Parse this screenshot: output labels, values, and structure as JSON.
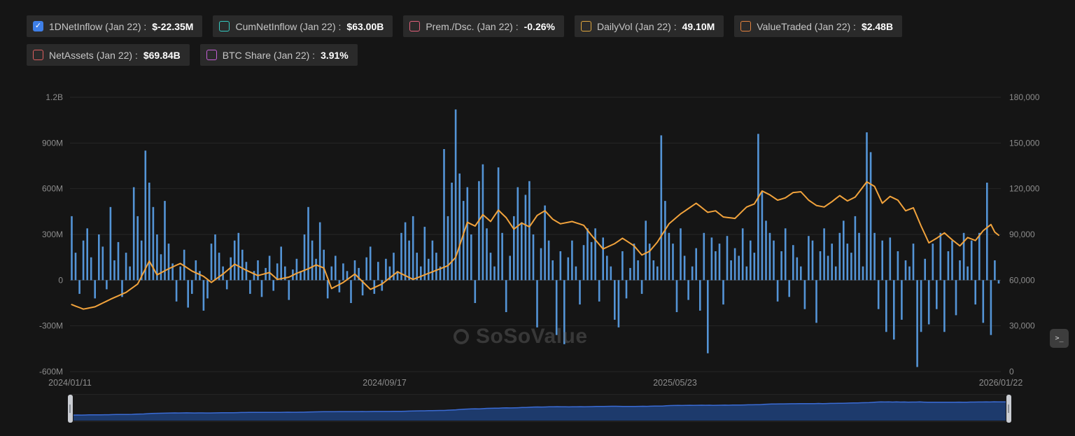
{
  "legend": {
    "check_glyph": "✓",
    "row1": [
      {
        "label": "1DNetInflow",
        "date": "(Jan 22) :",
        "value": "$-22.35M",
        "color": "#3e7fe8",
        "checked": true
      },
      {
        "label": "CumNetInflow",
        "date": "(Jan 22) :",
        "value": "$63.00B",
        "color": "#35c9c0",
        "checked": false
      },
      {
        "label": "Prem./Dsc.",
        "date": "(Jan 22) :",
        "value": "-0.26%",
        "color": "#e0607a",
        "checked": false
      },
      {
        "label": "DailyVol",
        "date": "(Jan 22) :",
        "value": "49.10M",
        "color": "#dfa63e",
        "checked": false
      },
      {
        "label": "ValueTraded",
        "date": "(Jan 22) :",
        "value": "$2.48B",
        "color": "#e2823e",
        "checked": false
      }
    ],
    "row2": [
      {
        "label": "NetAssets",
        "date": "(Jan 22) :",
        "value": "$69.84B",
        "color": "#dd5f5f",
        "checked": false
      },
      {
        "label": "BTC Share",
        "date": "(Jan 22) :",
        "value": "3.91%",
        "color": "#c45fd6",
        "checked": false
      }
    ]
  },
  "watermark": {
    "text": "SoSoValue"
  },
  "side_button": {
    "icon": ">_"
  },
  "chart_data": {
    "type": "bar",
    "title": "",
    "left_axis": {
      "ticks": [
        "1.2B",
        "900M",
        "600M",
        "300M",
        "0",
        "-300M",
        "-600M"
      ],
      "max": 1200,
      "min": -600,
      "unit": "M USD"
    },
    "right_axis": {
      "ticks": [
        "180,000",
        "150,000",
        "120,000",
        "90,000",
        "60,000",
        "30,000",
        "0"
      ],
      "max": 180000,
      "min": 0
    },
    "x_labels": [
      {
        "label": "2024/01/11",
        "pos": 0.0
      },
      {
        "label": "2024/09/17",
        "pos": 0.338
      },
      {
        "label": "2025/05/23",
        "pos": 0.65
      },
      {
        "label": "2026/01/22",
        "pos": 1.0
      }
    ],
    "bars": {
      "name": "1DNetInflow",
      "color": "#5494d6",
      "values": [
        420,
        180,
        -90,
        260,
        340,
        150,
        -120,
        300,
        220,
        -60,
        480,
        130,
        250,
        -110,
        180,
        90,
        610,
        420,
        260,
        850,
        640,
        480,
        300,
        170,
        520,
        240,
        110,
        -140,
        90,
        200,
        -180,
        -90,
        130,
        60,
        -200,
        -120,
        240,
        300,
        180,
        90,
        -60,
        150,
        260,
        310,
        200,
        120,
        -90,
        60,
        130,
        -110,
        80,
        160,
        -70,
        110,
        220,
        90,
        -130,
        70,
        140,
        60,
        300,
        480,
        260,
        140,
        380,
        200,
        -120,
        90,
        160,
        -80,
        110,
        60,
        -150,
        130,
        80,
        -100,
        150,
        220,
        -90,
        120,
        -70,
        140,
        90,
        180,
        60,
        310,
        380,
        260,
        420,
        180,
        90,
        350,
        140,
        260,
        180,
        90,
        860,
        420,
        640,
        1120,
        700,
        520,
        610,
        300,
        -150,
        650,
        760,
        340,
        180,
        90,
        740,
        310,
        -210,
        160,
        420,
        610,
        380,
        560,
        650,
        300,
        -310,
        210,
        490,
        260,
        130,
        -360,
        190,
        -420,
        150,
        260,
        90,
        -160,
        230,
        340,
        250,
        340,
        -140,
        280,
        160,
        90,
        -260,
        -310,
        190,
        -120,
        80,
        240,
        130,
        -90,
        390,
        240,
        130,
        90,
        950,
        520,
        310,
        240,
        -210,
        340,
        160,
        -130,
        90,
        210,
        -200,
        310,
        -480,
        280,
        190,
        240,
        -160,
        290,
        130,
        210,
        160,
        340,
        90,
        260,
        180,
        960,
        580,
        390,
        310,
        260,
        -140,
        190,
        340,
        -110,
        230,
        150,
        90,
        -190,
        290,
        260,
        -280,
        190,
        340,
        160,
        240,
        90,
        310,
        390,
        240,
        180,
        420,
        310,
        90,
        970,
        840,
        310,
        -190,
        260,
        -340,
        280,
        -390,
        190,
        -260,
        130,
        90,
        240,
        -570,
        -340,
        140,
        -290,
        240,
        -190,
        310,
        -340,
        190,
        260,
        -230,
        130,
        310,
        90,
        260,
        -160,
        310,
        -280,
        640,
        -360,
        130,
        -22
      ]
    },
    "line": {
      "color": "#f2a33c",
      "axis": "right",
      "anchors": [
        [
          0,
          44000
        ],
        [
          3,
          41000
        ],
        [
          6,
          42500
        ],
        [
          10,
          47500
        ],
        [
          14,
          52000
        ],
        [
          17,
          57500
        ],
        [
          20,
          72500
        ],
        [
          22,
          63500
        ],
        [
          25,
          67500
        ],
        [
          28,
          71000
        ],
        [
          31,
          66000
        ],
        [
          34,
          62500
        ],
        [
          36,
          58500
        ],
        [
          39,
          64000
        ],
        [
          42,
          70500
        ],
        [
          45,
          66500
        ],
        [
          48,
          63000
        ],
        [
          51,
          65000
        ],
        [
          53,
          60500
        ],
        [
          56,
          62000
        ],
        [
          58,
          64500
        ],
        [
          61,
          67500
        ],
        [
          63,
          70000
        ],
        [
          65,
          68000
        ],
        [
          67,
          54500
        ],
        [
          70,
          58500
        ],
        [
          73,
          64000
        ],
        [
          75,
          59000
        ],
        [
          77,
          54000
        ],
        [
          80,
          57500
        ],
        [
          84,
          65500
        ],
        [
          86,
          63000
        ],
        [
          88,
          60500
        ],
        [
          91,
          63500
        ],
        [
          94,
          66500
        ],
        [
          97,
          69500
        ],
        [
          99,
          75000
        ],
        [
          102,
          98000
        ],
        [
          104,
          95500
        ],
        [
          106,
          103000
        ],
        [
          108,
          98500
        ],
        [
          110,
          106000
        ],
        [
          112,
          101000
        ],
        [
          114,
          93500
        ],
        [
          116,
          97500
        ],
        [
          118,
          95000
        ],
        [
          120,
          102500
        ],
        [
          122,
          105500
        ],
        [
          124,
          100000
        ],
        [
          126,
          97000
        ],
        [
          129,
          98500
        ],
        [
          132,
          96000
        ],
        [
          134,
          89500
        ],
        [
          137,
          80500
        ],
        [
          140,
          84000
        ],
        [
          142,
          87500
        ],
        [
          145,
          82500
        ],
        [
          147,
          76500
        ],
        [
          149,
          79000
        ],
        [
          151,
          85000
        ],
        [
          154,
          97000
        ],
        [
          157,
          103500
        ],
        [
          159,
          107000
        ],
        [
          161,
          110500
        ],
        [
          164,
          104500
        ],
        [
          166,
          105500
        ],
        [
          168,
          101500
        ],
        [
          171,
          100500
        ],
        [
          174,
          108000
        ],
        [
          176,
          110000
        ],
        [
          178,
          118500
        ],
        [
          180,
          116000
        ],
        [
          182,
          112500
        ],
        [
          184,
          114000
        ],
        [
          186,
          117500
        ],
        [
          188,
          118000
        ],
        [
          190,
          112500
        ],
        [
          192,
          109000
        ],
        [
          194,
          108000
        ],
        [
          196,
          111500
        ],
        [
          198,
          115500
        ],
        [
          200,
          112000
        ],
        [
          202,
          114500
        ],
        [
          205,
          124500
        ],
        [
          207,
          121500
        ],
        [
          209,
          110500
        ],
        [
          211,
          115000
        ],
        [
          213,
          112500
        ],
        [
          215,
          105500
        ],
        [
          217,
          107500
        ],
        [
          219,
          95500
        ],
        [
          221,
          84500
        ],
        [
          223,
          87500
        ],
        [
          225,
          91000
        ],
        [
          227,
          86500
        ],
        [
          229,
          82500
        ],
        [
          231,
          88000
        ],
        [
          233,
          86000
        ],
        [
          235,
          92500
        ],
        [
          237,
          96500
        ],
        [
          238,
          91500
        ],
        [
          239,
          89500
        ]
      ]
    },
    "navigator": {
      "fill": "#1e3e76",
      "stroke": "#3a6bd4",
      "handle_color": "#c9ccd2"
    }
  }
}
